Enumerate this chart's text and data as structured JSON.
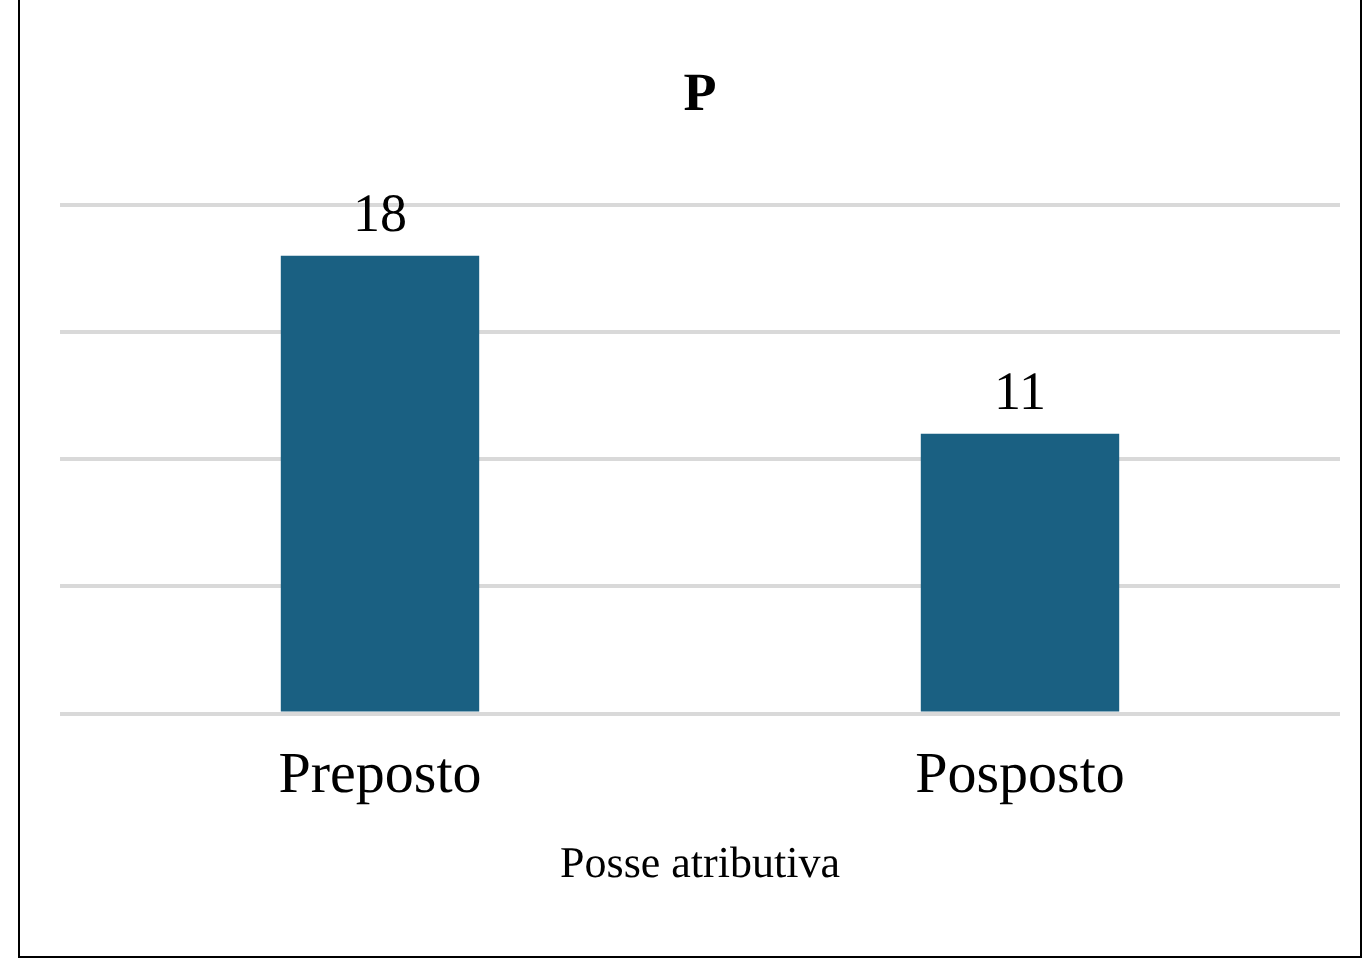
{
  "chart_data": {
    "type": "bar",
    "title": "P",
    "xlabel": "Posse atributiva",
    "categories": [
      "Preposto",
      "Posposto"
    ],
    "values": [
      18,
      11
    ],
    "color": "#1a6082",
    "ylim": [
      0,
      20
    ],
    "yticks": [
      {
        "value": 0,
        "label": null
      },
      {
        "value": 5,
        "label": null
      },
      {
        "value": 10,
        "label": null
      },
      {
        "value": 15,
        "label": null
      },
      {
        "value": 20,
        "label": null
      }
    ],
    "grid": "y",
    "tick_labels": "x",
    "data_labels": true,
    "legend": false
  }
}
